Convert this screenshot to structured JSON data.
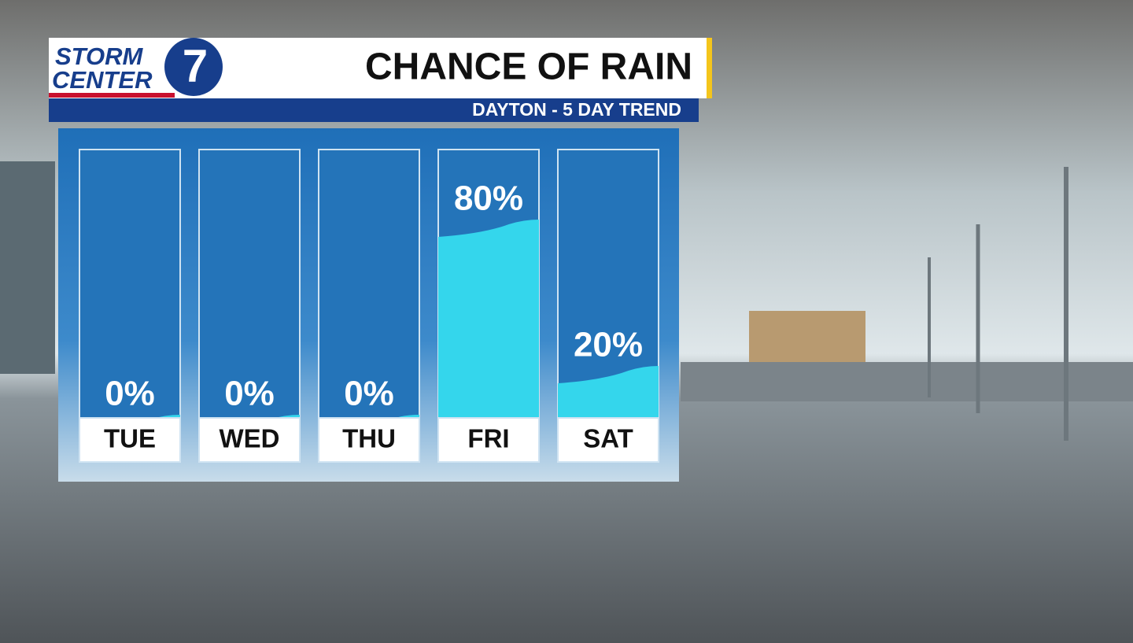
{
  "logo": {
    "line1": "STORM",
    "line2": "CENTER",
    "number": "7"
  },
  "chart_data": {
    "type": "bar",
    "title": "CHANCE OF RAIN",
    "subtitle": "DAYTON - 5 DAY TREND",
    "categories": [
      "TUE",
      "WED",
      "THU",
      "FRI",
      "SAT"
    ],
    "values": [
      0,
      0,
      0,
      80,
      20
    ],
    "value_labels": [
      "0%",
      "0%",
      "0%",
      "80%",
      "20%"
    ],
    "ylim": [
      0,
      100
    ],
    "color": "#34d6ec"
  }
}
